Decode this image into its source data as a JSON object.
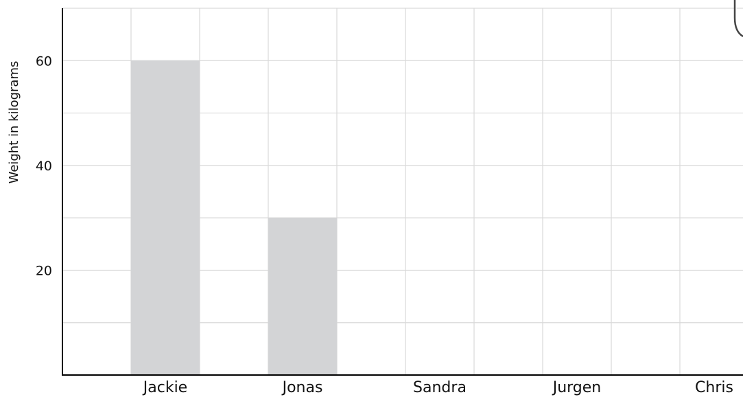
{
  "chart_data": {
    "type": "bar",
    "title": "",
    "xlabel": "",
    "ylabel": "Weight in kilograms",
    "categories": [
      "Jackie",
      "Jonas",
      "Sandra",
      "Jurgen",
      "Chris"
    ],
    "values": [
      60,
      30,
      null,
      null,
      null
    ],
    "ylim": [
      0,
      70
    ],
    "yticks": [
      20,
      40,
      60
    ],
    "ytick_labels": [
      "20",
      "40",
      "60"
    ],
    "grid": true,
    "colors": {
      "bar": "#d3d4d6",
      "grid": "#d9d9d9",
      "axis": "#000000"
    }
  }
}
